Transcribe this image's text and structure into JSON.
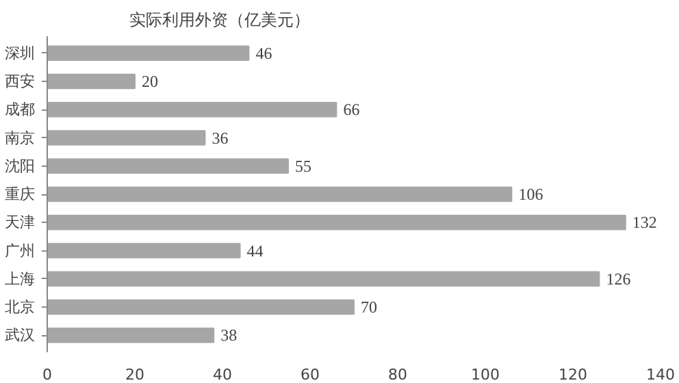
{
  "chart_data": {
    "type": "bar",
    "orientation": "horizontal",
    "title": "实际利用外资（亿美元）",
    "categories": [
      "深圳",
      "西安",
      "成都",
      "南京",
      "沈阳",
      "重庆",
      "天津",
      "广州",
      "上海",
      "北京",
      "武汉"
    ],
    "values": [
      46,
      20,
      66,
      36,
      55,
      106,
      132,
      44,
      126,
      70,
      38
    ],
    "color": "#a6a6a6",
    "xlim": [
      0,
      140
    ],
    "xticks": [
      0,
      20,
      40,
      60,
      80,
      100,
      120,
      140
    ],
    "grid": false,
    "data_labels": true
  }
}
